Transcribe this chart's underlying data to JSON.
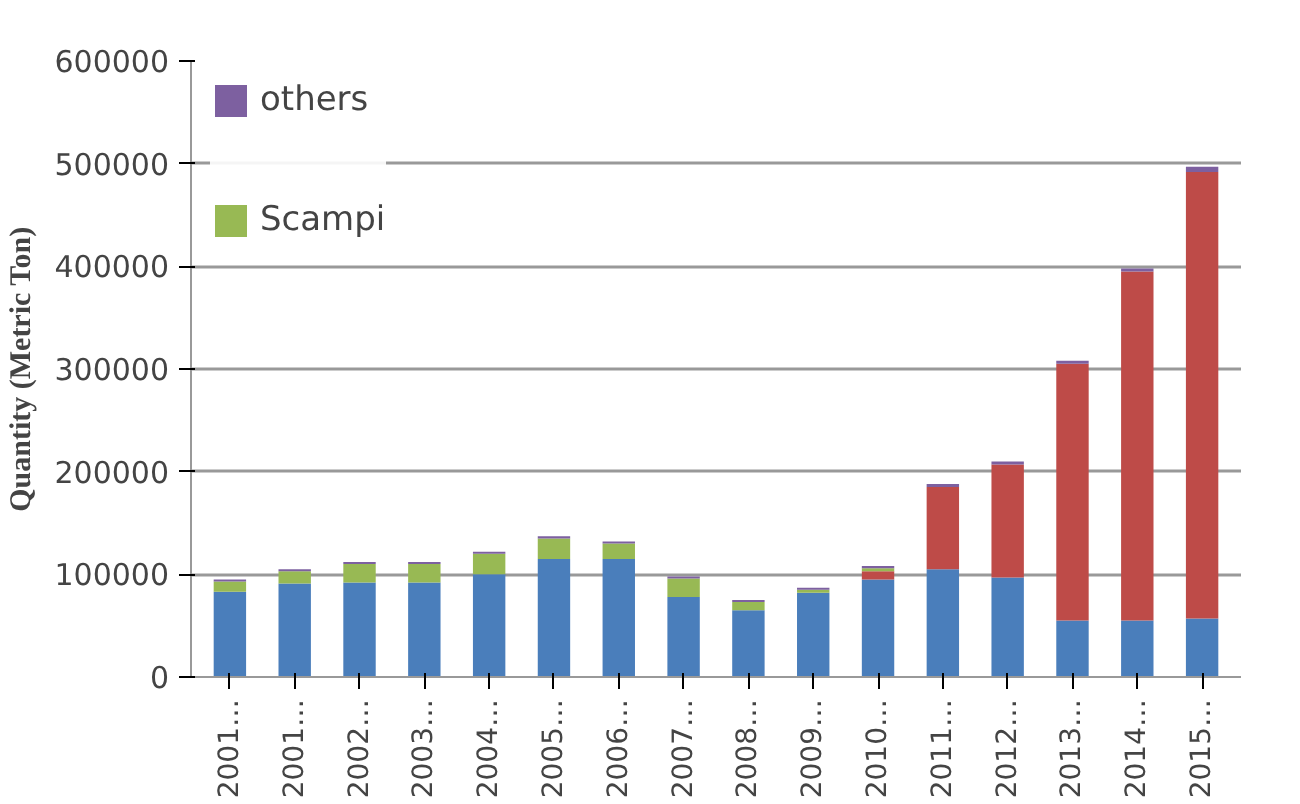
{
  "chart_data": {
    "type": "bar",
    "stacked": true,
    "ylabel": "Quantity (Metric Ton)",
    "categories": [
      "2001…",
      "2001…",
      "2002…",
      "2003…",
      "2004…",
      "2005…",
      "2006…",
      "2007…",
      "2008…",
      "2009…",
      "2010…",
      "2011…",
      "2012…",
      "2013…",
      "2014…",
      "2015…"
    ],
    "series": [
      {
        "color": "#4a7ebb",
        "values": [
          83000,
          91000,
          92000,
          92000,
          100000,
          115000,
          115000,
          78000,
          65000,
          82000,
          95000,
          105000,
          97000,
          55000,
          55000,
          57000
        ]
      },
      {
        "color": "#be4b48",
        "values": [
          0,
          0,
          0,
          0,
          0,
          0,
          0,
          0,
          0,
          0,
          8000,
          80000,
          110000,
          250000,
          340000,
          435000
        ]
      },
      {
        "name": "Scampi",
        "color": "#98b954",
        "values": [
          10000,
          12000,
          18000,
          18000,
          20000,
          20000,
          15000,
          18000,
          8000,
          3000,
          3000,
          null,
          null,
          null,
          null,
          null
        ]
      },
      {
        "name": "others",
        "color": "#7d60a0",
        "values": [
          2000,
          2000,
          2000,
          2000,
          2000,
          2000,
          2000,
          2000,
          2000,
          2000,
          2000,
          3000,
          3000,
          3000,
          3000,
          5000
        ]
      }
    ],
    "ylim": [
      0,
      600000
    ],
    "yticks": [
      0,
      100000,
      200000,
      300000,
      400000,
      500000,
      600000
    ],
    "grid": "y",
    "legend": "top left"
  }
}
